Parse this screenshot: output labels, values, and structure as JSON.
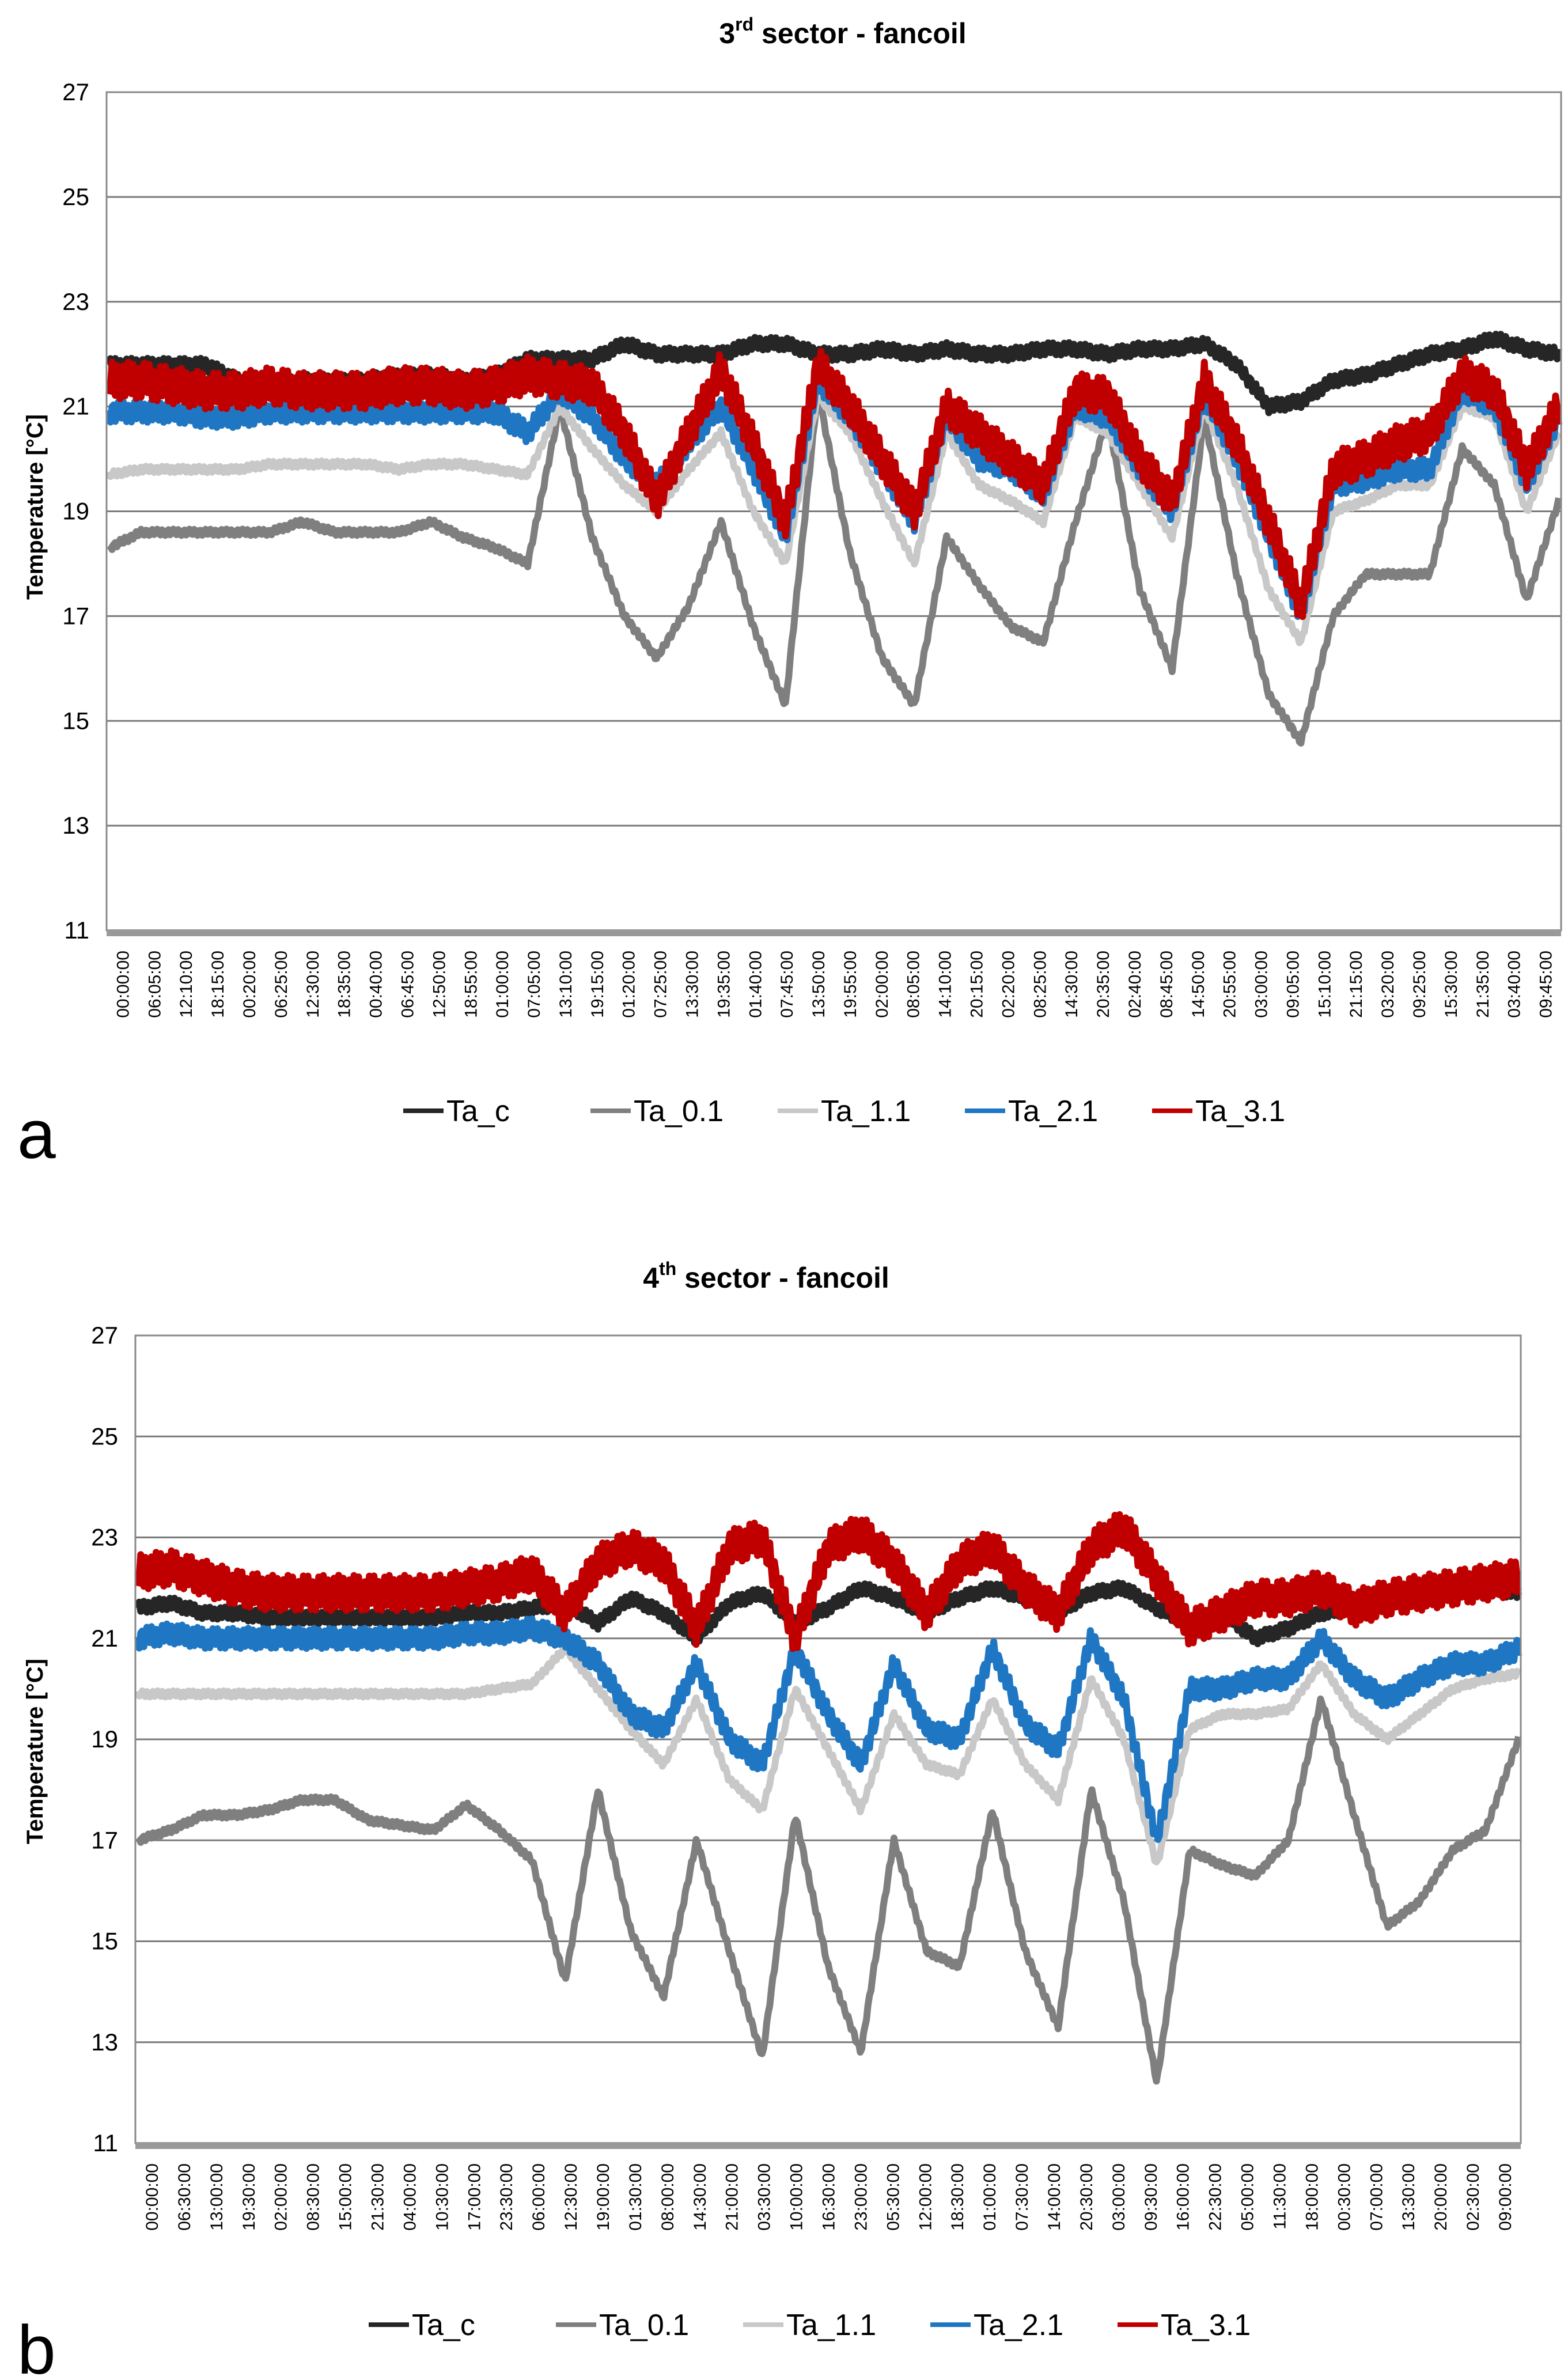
{
  "chart_data": [
    {
      "panel": "a",
      "type": "line",
      "title": "3rd sector - fancoil",
      "title_main": "3",
      "title_sup": "rd",
      "title_rest": " sector - fancoil",
      "xlabel": "",
      "ylabel": "Temperature [°C]",
      "ylim": [
        11,
        27
      ],
      "yticks": [
        11,
        13,
        15,
        17,
        19,
        21,
        23,
        25,
        27
      ],
      "grid": true,
      "legend_position": "bottom-center",
      "x_ticks": [
        "00:00:00",
        "06:05:00",
        "12:10:00",
        "18:15:00",
        "00:20:00",
        "06:25:00",
        "12:30:00",
        "18:35:00",
        "00:40:00",
        "06:45:00",
        "12:50:00",
        "18:55:00",
        "01:00:00",
        "07:05:00",
        "13:10:00",
        "19:15:00",
        "01:20:00",
        "07:25:00",
        "13:30:00",
        "19:35:00",
        "01:40:00",
        "07:45:00",
        "13:50:00",
        "19:55:00",
        "02:00:00",
        "08:05:00",
        "14:10:00",
        "20:15:00",
        "02:20:00",
        "08:25:00",
        "14:30:00",
        "20:35:00",
        "02:40:00",
        "08:45:00",
        "14:50:00",
        "20:55:00",
        "03:00:00",
        "09:05:00",
        "15:10:00",
        "21:15:00",
        "03:20:00",
        "09:25:00",
        "15:30:00",
        "21:35:00",
        "03:40:00",
        "09:45:00"
      ],
      "series": [
        {
          "name": "Ta_c",
          "color": "#262626",
          "values": [
            21.8,
            21.8,
            21.8,
            21.8,
            21.5,
            21.4,
            21.5,
            21.5,
            21.5,
            21.6,
            21.6,
            21.5,
            21.6,
            21.9,
            21.9,
            21.9,
            22.2,
            22.0,
            22.0,
            22.0,
            22.2,
            22.2,
            22.0,
            22.0,
            22.1,
            22.0,
            22.1,
            22.0,
            22.0,
            22.1,
            22.1,
            22.0,
            22.1,
            22.1,
            22.2,
            21.8,
            21.0,
            21.1,
            21.5,
            21.6,
            21.8,
            22.0,
            22.1,
            22.3,
            22.1,
            22.0
          ]
        },
        {
          "name": "Ta_0.1",
          "color": "#7f7f7f",
          "values": [
            18.3,
            18.6,
            18.6,
            18.6,
            18.6,
            18.6,
            18.8,
            18.6,
            18.6,
            18.6,
            18.8,
            18.5,
            18.3,
            18.0,
            21.0,
            18.5,
            17.0,
            16.2,
            17.2,
            18.8,
            16.8,
            15.3,
            21.3,
            18.2,
            16.2,
            15.3,
            18.5,
            17.6,
            16.8,
            16.5,
            18.8,
            20.8,
            17.5,
            16.0,
            20.8,
            17.8,
            15.5,
            14.6,
            17.0,
            17.8,
            17.8,
            17.8,
            20.2,
            19.5,
            17.3,
            19.2
          ]
        },
        {
          "name": "Ta_1.1",
          "color": "#c8c8c8",
          "values": [
            19.7,
            19.8,
            19.8,
            19.8,
            19.8,
            19.9,
            19.9,
            19.9,
            19.9,
            19.8,
            19.9,
            19.9,
            19.8,
            19.7,
            21.0,
            20.2,
            19.5,
            19.0,
            19.8,
            20.5,
            19.0,
            18.0,
            21.2,
            20.5,
            19.2,
            18.0,
            20.5,
            19.5,
            19.2,
            18.8,
            20.8,
            20.5,
            19.5,
            18.5,
            21.0,
            19.5,
            17.5,
            16.5,
            19.0,
            19.2,
            19.5,
            19.5,
            21.0,
            20.8,
            19.0,
            20.5
          ]
        },
        {
          "name": "Ta_2.1",
          "color": "#1f77c4",
          "values": [
            20.9,
            20.9,
            20.9,
            20.8,
            20.8,
            20.9,
            20.9,
            20.9,
            20.9,
            20.9,
            20.9,
            20.9,
            20.9,
            20.5,
            21.3,
            20.8,
            20.0,
            19.5,
            20.3,
            21.0,
            19.8,
            18.5,
            21.5,
            20.8,
            19.8,
            18.8,
            20.8,
            20.0,
            19.8,
            19.3,
            21.0,
            20.8,
            19.8,
            19.0,
            21.2,
            20.0,
            18.5,
            17.0,
            19.5,
            19.6,
            19.8,
            19.8,
            21.3,
            21.0,
            19.5,
            20.8
          ]
        },
        {
          "name": "Ta_3.1",
          "color": "#c00000",
          "values": [
            21.5,
            21.5,
            21.4,
            21.3,
            21.3,
            21.4,
            21.3,
            21.3,
            21.3,
            21.4,
            21.4,
            21.3,
            21.4,
            21.6,
            21.5,
            21.4,
            20.5,
            19.2,
            20.5,
            21.7,
            20.3,
            18.8,
            21.8,
            21.0,
            20.0,
            19.0,
            21.0,
            20.5,
            20.0,
            19.5,
            21.3,
            21.2,
            20.0,
            19.2,
            21.5,
            20.3,
            18.8,
            17.2,
            19.8,
            20.0,
            20.3,
            20.5,
            21.6,
            21.3,
            19.8,
            21.0
          ]
        }
      ]
    },
    {
      "panel": "b",
      "type": "line",
      "title": "4th sector - fancoil",
      "title_main": "4",
      "title_sup": "th",
      "title_rest": "  sector - fancoil",
      "xlabel": "",
      "ylabel": "Temperature [°C]",
      "ylim": [
        11,
        27
      ],
      "yticks": [
        11,
        13,
        15,
        17,
        19,
        21,
        23,
        25,
        27
      ],
      "grid": true,
      "legend_position": "bottom-center",
      "x_ticks": [
        "00:00:00",
        "06:30:00",
        "13:00:00",
        "19:30:00",
        "02:00:00",
        "08:30:00",
        "15:00:00",
        "21:30:00",
        "04:00:00",
        "10:30:00",
        "17:00:00",
        "23:30:00",
        "06:00:00",
        "12:30:00",
        "19:00:00",
        "01:30:00",
        "08:00:00",
        "14:30:00",
        "21:00:00",
        "03:30:00",
        "10:00:00",
        "16:30:00",
        "23:00:00",
        "05:30:00",
        "12:00:00",
        "18:30:00",
        "01:00:00",
        "07:30:00",
        "14:00:00",
        "20:30:00",
        "03:00:00",
        "09:30:00",
        "16:00:00",
        "22:30:00",
        "05:00:00",
        "11:30:00",
        "18:00:00",
        "00:30:00",
        "07:00:00",
        "13:30:00",
        "20:00:00",
        "02:30:00",
        "09:00:00"
      ],
      "series": [
        {
          "name": "Ta_c",
          "color": "#262626",
          "values": [
            21.6,
            21.7,
            21.5,
            21.5,
            21.4,
            21.4,
            21.4,
            21.4,
            21.4,
            21.4,
            21.5,
            21.5,
            21.6,
            21.7,
            21.3,
            21.8,
            21.5,
            21.0,
            21.7,
            21.9,
            21.3,
            21.6,
            22.0,
            21.8,
            21.5,
            21.8,
            22.0,
            21.8,
            21.5,
            21.9,
            22.0,
            21.6,
            21.3,
            21.5,
            21.0,
            21.2,
            21.5,
            21.6,
            21.8,
            21.9,
            22.0,
            22.0,
            21.9
          ]
        },
        {
          "name": "Ta_0.1",
          "color": "#7f7f7f",
          "values": [
            17.0,
            17.2,
            17.5,
            17.5,
            17.6,
            17.8,
            17.8,
            17.4,
            17.3,
            17.2,
            17.7,
            17.2,
            16.6,
            14.2,
            18.0,
            15.2,
            13.9,
            17.0,
            14.8,
            12.7,
            17.5,
            14.5,
            12.8,
            17.0,
            14.8,
            14.5,
            17.6,
            14.8,
            13.3,
            18.0,
            15.8,
            12.2,
            16.8,
            16.5,
            16.3,
            17.0,
            19.8,
            17.5,
            15.3,
            15.8,
            16.8,
            17.2,
            19.0
          ]
        },
        {
          "name": "Ta_1.1",
          "color": "#c8c8c8",
          "values": [
            19.9,
            19.9,
            19.9,
            19.9,
            19.9,
            19.9,
            19.9,
            19.9,
            19.9,
            19.9,
            19.9,
            20.0,
            20.1,
            20.8,
            20.0,
            19.2,
            18.5,
            19.8,
            18.2,
            17.6,
            20.0,
            18.8,
            17.6,
            19.5,
            18.5,
            18.3,
            19.8,
            18.5,
            17.8,
            20.2,
            19.0,
            16.5,
            19.2,
            19.5,
            19.5,
            19.6,
            20.5,
            19.5,
            19.0,
            19.5,
            20.0,
            20.2,
            20.3
          ]
        },
        {
          "name": "Ta_2.1",
          "color": "#1f77c4",
          "values": [
            21.0,
            21.1,
            21.0,
            21.0,
            21.0,
            21.0,
            21.0,
            21.0,
            21.0,
            21.0,
            21.1,
            21.1,
            21.2,
            21.0,
            20.5,
            19.5,
            19.2,
            20.5,
            19.0,
            18.5,
            20.8,
            19.5,
            18.5,
            20.5,
            19.2,
            19.0,
            20.8,
            19.3,
            18.8,
            21.0,
            19.8,
            17.0,
            20.0,
            20.0,
            20.2,
            20.2,
            21.0,
            20.2,
            19.8,
            20.2,
            20.5,
            20.5,
            20.8
          ]
        },
        {
          "name": "Ta_3.1",
          "color": "#c00000",
          "values": [
            22.3,
            22.4,
            22.2,
            22.0,
            21.9,
            21.9,
            21.9,
            21.9,
            21.9,
            21.9,
            22.0,
            22.1,
            22.3,
            21.5,
            22.5,
            22.8,
            22.5,
            21.2,
            22.8,
            23.0,
            21.0,
            22.8,
            23.1,
            22.5,
            21.5,
            22.5,
            22.8,
            22.0,
            21.5,
            22.8,
            23.2,
            22.2,
            21.2,
            21.5,
            21.8,
            21.8,
            22.0,
            21.6,
            21.8,
            21.9,
            22.0,
            22.1,
            22.2
          ]
        }
      ]
    }
  ]
}
